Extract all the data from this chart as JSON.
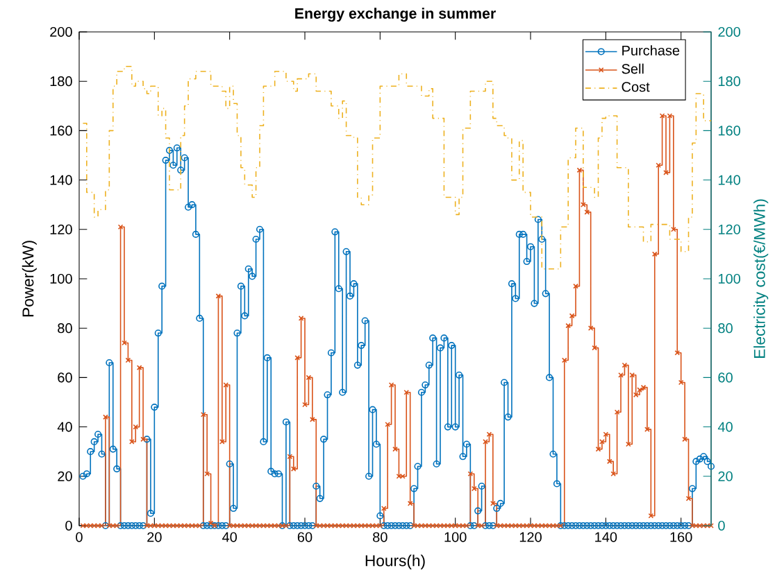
{
  "chart_data": {
    "type": "step",
    "title": "Energy exchange in summer",
    "xlabel": "Hours(h)",
    "ylabel": "Power(kW)",
    "y2label": "Electricity cost(€/MWh)",
    "x": [
      1,
      2,
      3,
      4,
      5,
      6,
      7,
      8,
      9,
      10,
      11,
      12,
      13,
      14,
      15,
      16,
      17,
      18,
      19,
      20,
      21,
      22,
      23,
      24,
      25,
      26,
      27,
      28,
      29,
      30,
      31,
      32,
      33,
      34,
      35,
      36,
      37,
      38,
      39,
      40,
      41,
      42,
      43,
      44,
      45,
      46,
      47,
      48,
      49,
      50,
      51,
      52,
      53,
      54,
      55,
      56,
      57,
      58,
      59,
      60,
      61,
      62,
      63,
      64,
      65,
      66,
      67,
      68,
      69,
      70,
      71,
      72,
      73,
      74,
      75,
      76,
      77,
      78,
      79,
      80,
      81,
      82,
      83,
      84,
      85,
      86,
      87,
      88,
      89,
      90,
      91,
      92,
      93,
      94,
      95,
      96,
      97,
      98,
      99,
      100,
      101,
      102,
      103,
      104,
      105,
      106,
      107,
      108,
      109,
      110,
      111,
      112,
      113,
      114,
      115,
      116,
      117,
      118,
      119,
      120,
      121,
      122,
      123,
      124,
      125,
      126,
      127,
      128,
      129,
      130,
      131,
      132,
      133,
      134,
      135,
      136,
      137,
      138,
      139,
      140,
      141,
      142,
      143,
      144,
      145,
      146,
      147,
      148,
      149,
      150,
      151,
      152,
      153,
      154,
      155,
      156,
      157,
      158,
      159,
      160,
      161,
      162,
      163,
      164,
      165,
      166,
      167,
      168
    ],
    "series": [
      {
        "name": "Purchase",
        "color": "#0072bd",
        "marker": "circle",
        "values": [
          20,
          21,
          30,
          34,
          37,
          29,
          0,
          66,
          31,
          23,
          0,
          0,
          0,
          0,
          0,
          0,
          0,
          35,
          5,
          48,
          78,
          97,
          148,
          152,
          146,
          153,
          144,
          149,
          129,
          130,
          118,
          84,
          0,
          0,
          0,
          0,
          0,
          0,
          0,
          25,
          7,
          78,
          97,
          85,
          104,
          101,
          116,
          120,
          34,
          68,
          22,
          21,
          21,
          0,
          42,
          0,
          0,
          0,
          0,
          0,
          0,
          0,
          16,
          11,
          35,
          53,
          70,
          119,
          96,
          54,
          111,
          93,
          98,
          65,
          73,
          83,
          20,
          47,
          33,
          4,
          0,
          0,
          0,
          0,
          0,
          0,
          0,
          0,
          15,
          24,
          54,
          57,
          65,
          76,
          25,
          72,
          76,
          40,
          73,
          40,
          61,
          28,
          33,
          0,
          0,
          6,
          16,
          0,
          0,
          0,
          7,
          9,
          58,
          44,
          98,
          92,
          118,
          118,
          107,
          113,
          90,
          124,
          116,
          94,
          60,
          29,
          17,
          0,
          0,
          0,
          0,
          0,
          0,
          0,
          0,
          0,
          0,
          0,
          0,
          0,
          0,
          0,
          0,
          0,
          0,
          0,
          0,
          0,
          0,
          0,
          0,
          0,
          0,
          0,
          0,
          0,
          0,
          0,
          0,
          0,
          0,
          0,
          15,
          26,
          27,
          28,
          26,
          24
        ]
      },
      {
        "name": "Sell",
        "color": "#d95319",
        "marker": "cross",
        "values": [
          0,
          0,
          0,
          0,
          0,
          0,
          44,
          0,
          0,
          0,
          121,
          74,
          67,
          34,
          40,
          64,
          35,
          0,
          0,
          0,
          0,
          0,
          0,
          0,
          0,
          0,
          0,
          0,
          0,
          0,
          0,
          0,
          45,
          21,
          1,
          0,
          93,
          34,
          57,
          0,
          0,
          0,
          0,
          0,
          0,
          0,
          0,
          0,
          0,
          0,
          0,
          0,
          0,
          0,
          0,
          28,
          23,
          68,
          84,
          49,
          60,
          43,
          0,
          0,
          0,
          0,
          0,
          0,
          0,
          0,
          0,
          0,
          0,
          0,
          0,
          0,
          0,
          0,
          0,
          0,
          7,
          41,
          57,
          31,
          20,
          20,
          54,
          9,
          0,
          0,
          0,
          0,
          0,
          0,
          0,
          0,
          0,
          0,
          0,
          0,
          0,
          0,
          0,
          21,
          15,
          0,
          0,
          34,
          37,
          9,
          0,
          0,
          0,
          0,
          0,
          0,
          0,
          0,
          0,
          0,
          0,
          0,
          0,
          0,
          0,
          0,
          0,
          0,
          67,
          81,
          85,
          97,
          144,
          130,
          127,
          80,
          72,
          31,
          34,
          37,
          26,
          21,
          46,
          61,
          65,
          33,
          61,
          53,
          55,
          56,
          39,
          4,
          110,
          146,
          166,
          143,
          166,
          120,
          70,
          58,
          35,
          11,
          0,
          0,
          0,
          0,
          0,
          0
        ]
      },
      {
        "name": "Cost",
        "color": "#edb120",
        "marker": "none",
        "line_style": "dashed",
        "axis": "y2",
        "x": [
          1,
          2,
          4,
          5,
          7,
          8,
          9,
          10,
          12,
          14,
          15,
          17,
          18,
          19,
          20,
          21,
          22,
          23,
          24,
          26,
          27,
          28,
          29,
          31,
          33,
          35,
          36,
          38,
          39,
          40,
          41,
          42,
          43,
          44,
          46,
          47,
          48,
          49,
          52,
          55,
          57,
          58,
          61,
          63,
          66,
          67,
          69,
          70,
          71,
          73,
          74,
          75,
          77,
          78,
          80,
          85,
          87,
          91,
          93,
          94,
          96,
          97,
          100,
          101,
          102,
          104,
          108,
          110,
          111,
          113,
          114,
          115,
          117,
          118,
          120,
          123,
          125,
          127,
          128,
          130,
          132,
          133,
          134,
          137,
          138,
          139,
          140,
          141,
          143,
          146,
          150,
          152,
          155,
          157,
          160,
          162,
          163,
          164,
          166,
          168
        ],
        "values": [
          163,
          135,
          125,
          128,
          136,
          160,
          178,
          184,
          186,
          178,
          180,
          177,
          175,
          178,
          178,
          166,
          169,
          157,
          136,
          136,
          158,
          170,
          181,
          184,
          184,
          178,
          178,
          176,
          169,
          178,
          171,
          158,
          145,
          138,
          133,
          145,
          162,
          178,
          184,
          180,
          176,
          181,
          183,
          176,
          176,
          170,
          165,
          172,
          158,
          157,
          133,
          130,
          134,
          157,
          178,
          183,
          178,
          174,
          177,
          165,
          165,
          133,
          126,
          133,
          161,
          176,
          180,
          165,
          162,
          158,
          157,
          140,
          156,
          135,
          125,
          104,
          104,
          104,
          121,
          149,
          161,
          161,
          137,
          133,
          157,
          165,
          166,
          166,
          145,
          121,
          115,
          122,
          122,
          116,
          111,
          125,
          155,
          175,
          164,
          164
        ]
      }
    ],
    "xlim": [
      0,
      168
    ],
    "xticks": [
      0,
      20,
      40,
      60,
      80,
      100,
      120,
      140,
      160
    ],
    "ylim": [
      0,
      200
    ],
    "yticks": [
      0,
      20,
      40,
      60,
      80,
      100,
      120,
      140,
      160,
      180,
      200
    ],
    "y2lim": [
      0,
      200
    ],
    "y2ticks": [
      0,
      20,
      40,
      60,
      80,
      100,
      120,
      140,
      160,
      180,
      200
    ],
    "legend": "top right"
  }
}
